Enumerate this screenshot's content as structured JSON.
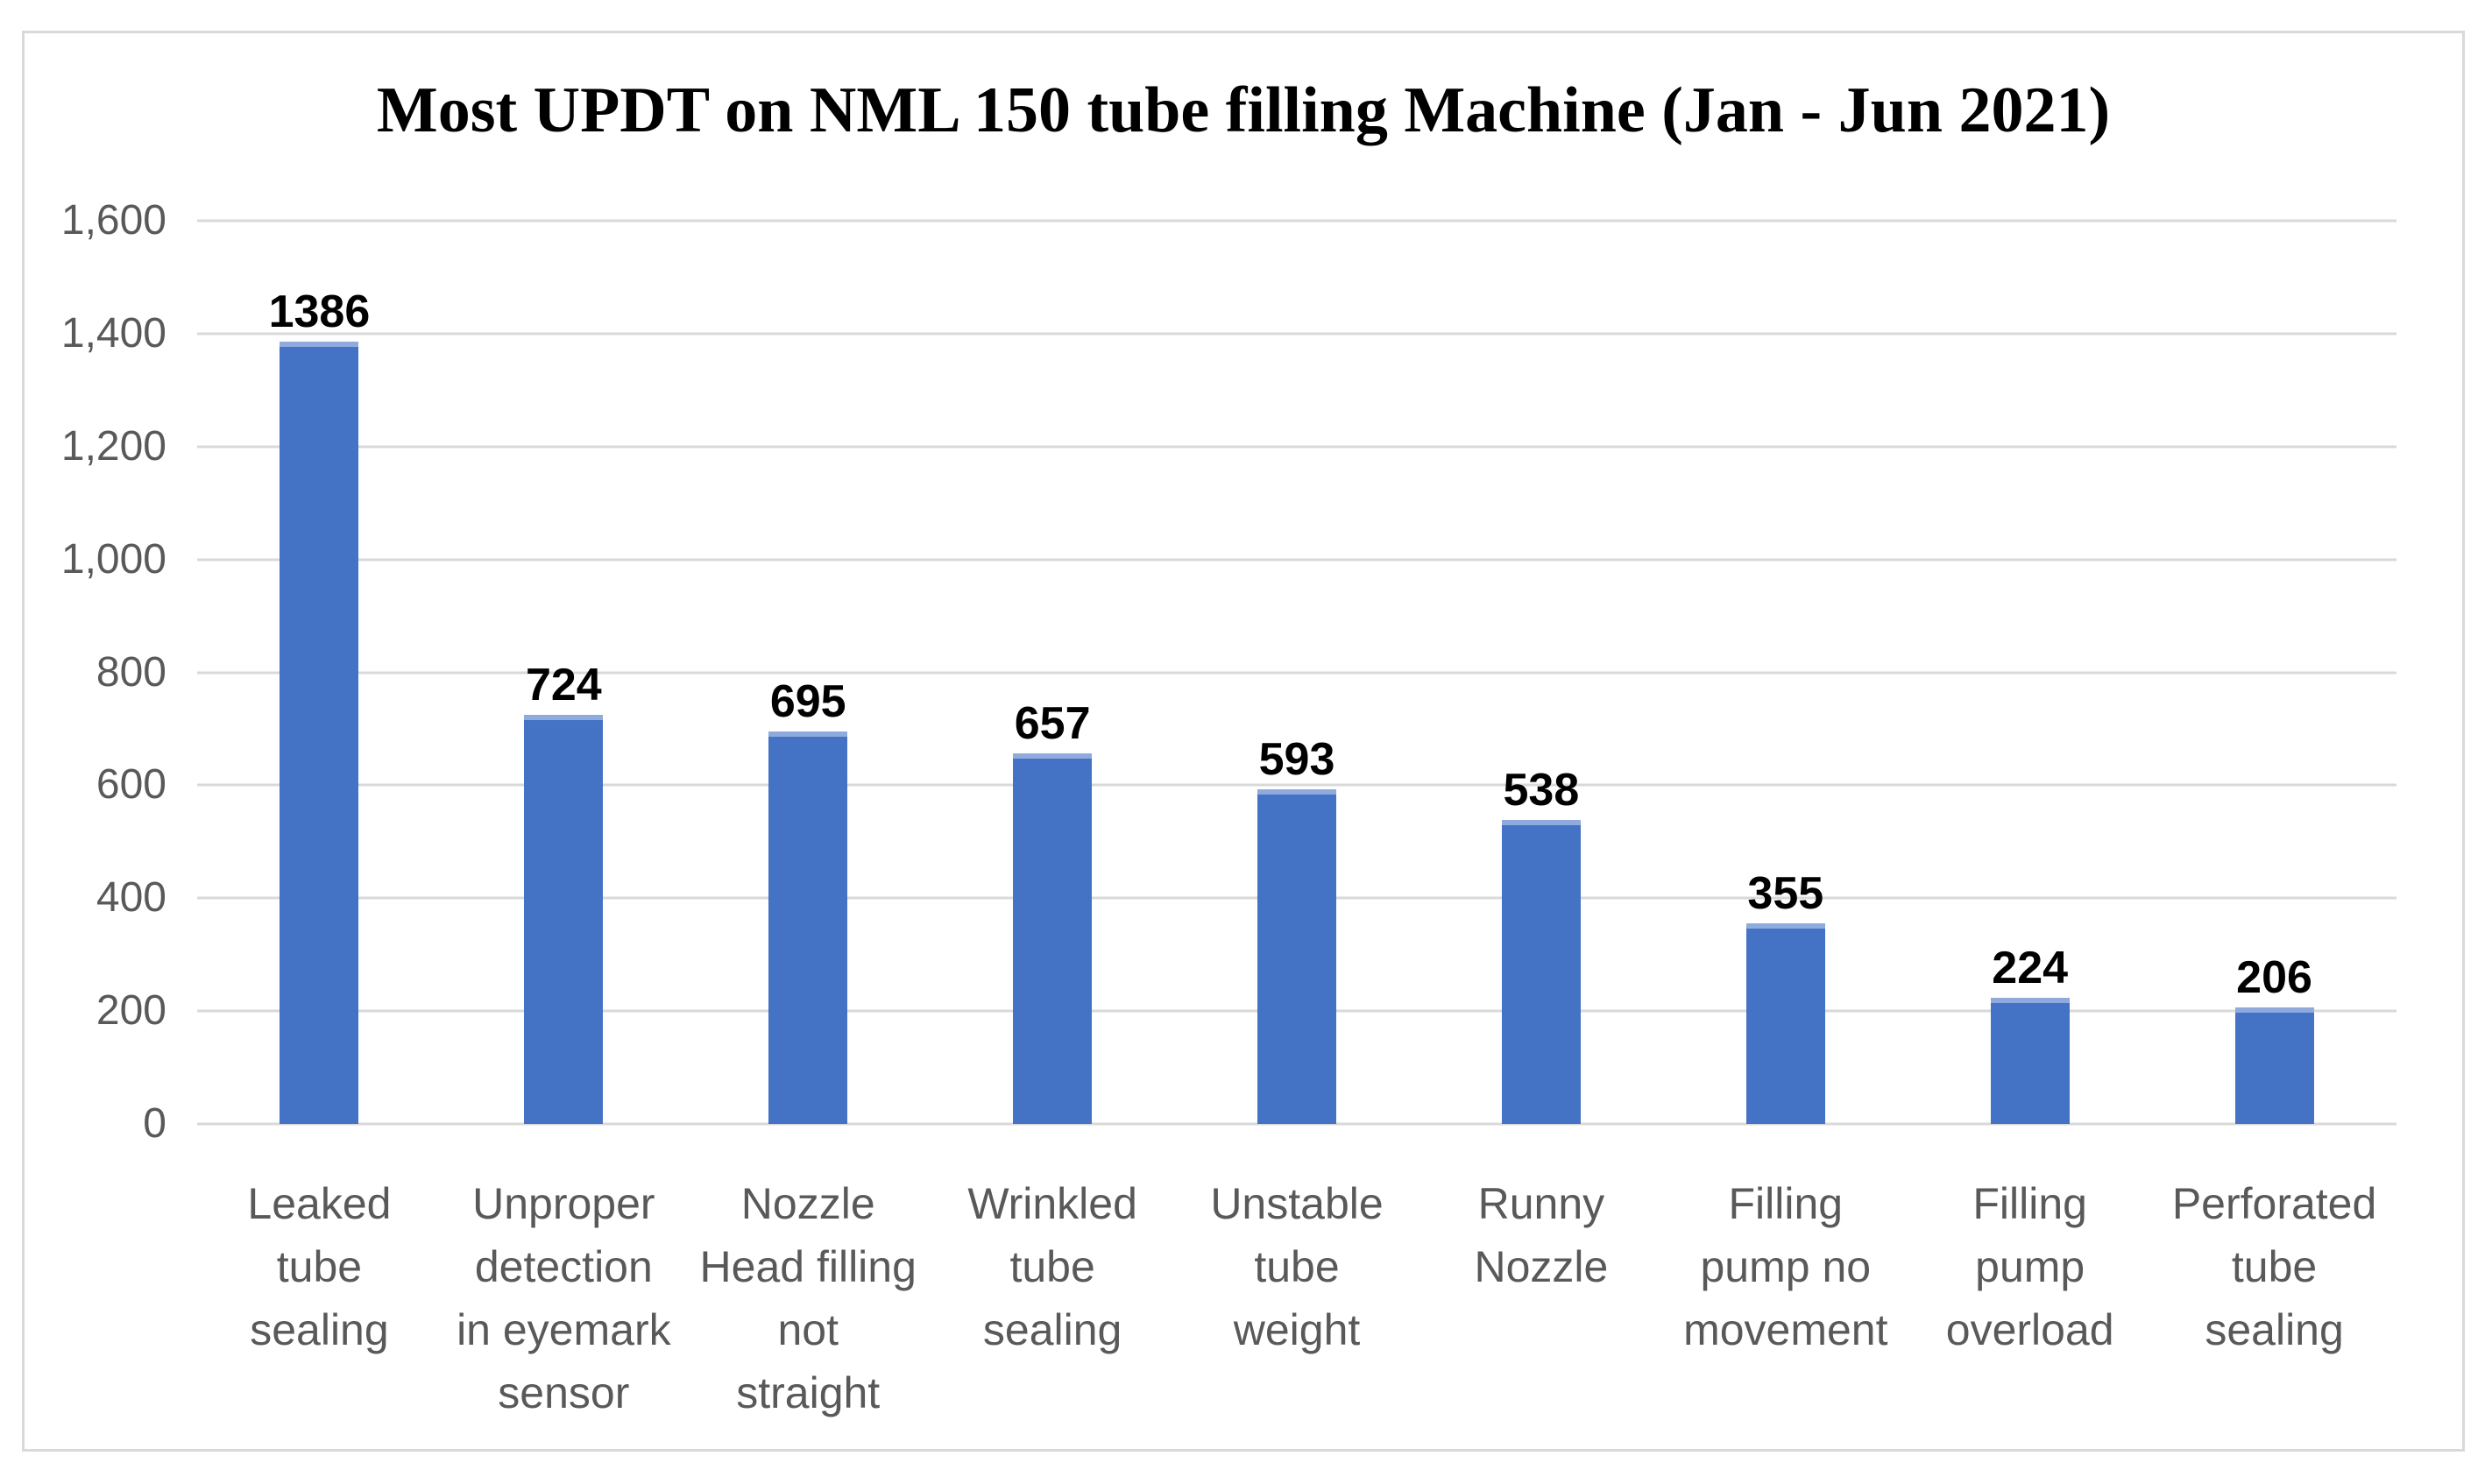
{
  "chart_data": {
    "type": "bar",
    "title": "Most UPDT on NML 150 tube filling Machine (Jan - Jun 2021)",
    "categories": [
      "Leaked tube sealing",
      "Unproper detection in eyemark sensor",
      "Nozzle Head filling not straight",
      "Wrinkled tube sealing",
      "Unstable tube weight",
      "Runny Nozzle",
      "Filling pump no movement",
      "Filling pump overload",
      "Perforated tube sealing"
    ],
    "category_lines": [
      "Leaked\ntube\nsealing",
      "Unproper\ndetection\nin eyemark\nsensor",
      "Nozzle\nHead filling\nnot\nstraight",
      "Wrinkled\ntube\nsealing",
      "Unstable\ntube\nweight",
      "Runny\nNozzle",
      "Filling\npump no\nmovement",
      "Filling\npump\noverload",
      "Perforated\ntube\nsealing"
    ],
    "values": [
      1386,
      724,
      695,
      657,
      593,
      538,
      355,
      224,
      206
    ],
    "value_labels": [
      "1386",
      "724",
      "695",
      "657",
      "593",
      "538",
      "355",
      "224",
      "206"
    ],
    "yticks": [
      "0",
      "200",
      "400",
      "600",
      "800",
      "1,000",
      "1,200",
      "1,400",
      "1,600"
    ],
    "ylim": [
      0,
      1600
    ],
    "xlabel": "",
    "ylabel": "",
    "grid": true,
    "legend": false,
    "colors": {
      "bar": "#4472C4",
      "bar_highlight": "#8FAADC",
      "gridline": "#D9D9D9",
      "axis_text": "#595959",
      "value_label": "#000000",
      "title": "#000000",
      "frame_border": "#D9D9D9",
      "background": "#FFFFFF"
    }
  }
}
